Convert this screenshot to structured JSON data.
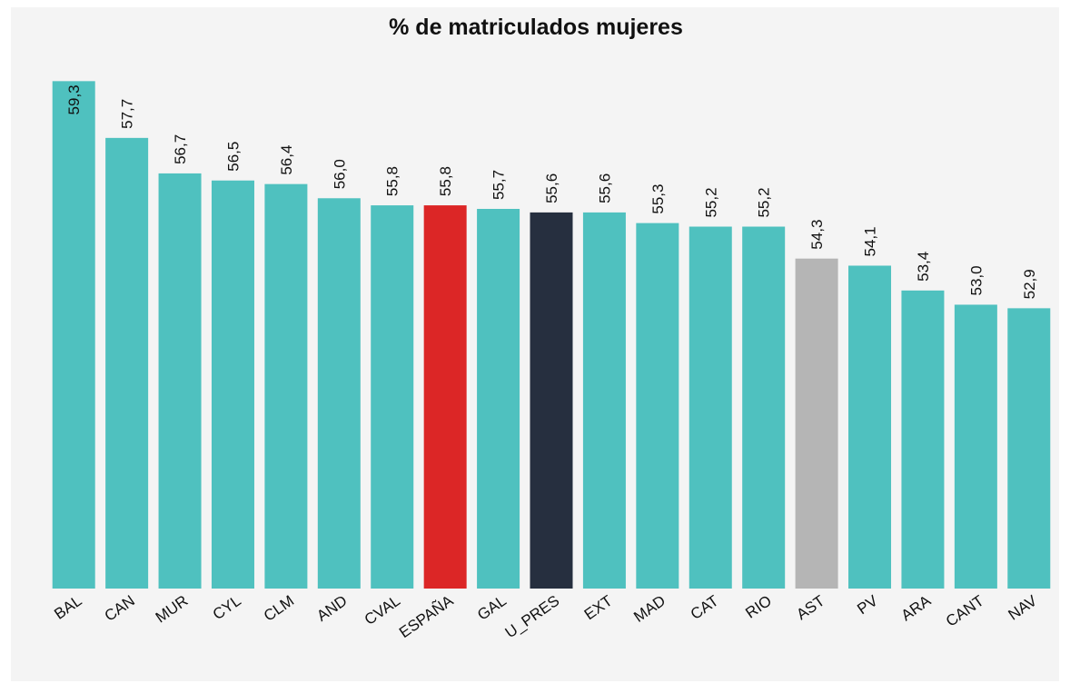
{
  "chart_data": {
    "type": "bar",
    "title": "% de matriculados mujeres",
    "categories": [
      "BAL",
      "CAN",
      "MUR",
      "CYL",
      "CLM",
      "AND",
      "CVAL",
      "ESPAÑA",
      "GAL",
      "U_PRES",
      "EXT",
      "MAD",
      "CAT",
      "RIO",
      "AST",
      "PV",
      "ARA",
      "CANT",
      "NAV"
    ],
    "values": [
      59.3,
      57.7,
      56.7,
      56.5,
      56.4,
      56.0,
      55.8,
      55.8,
      55.7,
      55.6,
      55.6,
      55.3,
      55.2,
      55.2,
      54.3,
      54.1,
      53.4,
      53.0,
      52.9
    ],
    "value_labels": [
      "59,3",
      "57,7",
      "56,7",
      "56,5",
      "56,4",
      "56,0",
      "55,8",
      "55,8",
      "55,7",
      "55,6",
      "55,6",
      "55,3",
      "55,2",
      "55,2",
      "54,3",
      "54,1",
      "53,4",
      "53,0",
      "52,9"
    ],
    "colors": [
      "#4fc1bf",
      "#4fc1bf",
      "#4fc1bf",
      "#4fc1bf",
      "#4fc1bf",
      "#4fc1bf",
      "#4fc1bf",
      "#dc2626",
      "#4fc1bf",
      "#262f3f",
      "#4fc1bf",
      "#4fc1bf",
      "#4fc1bf",
      "#4fc1bf",
      "#b5b5b5",
      "#4fc1bf",
      "#4fc1bf",
      "#4fc1bf",
      "#4fc1bf"
    ],
    "ylim": [
      45,
      60
    ]
  }
}
